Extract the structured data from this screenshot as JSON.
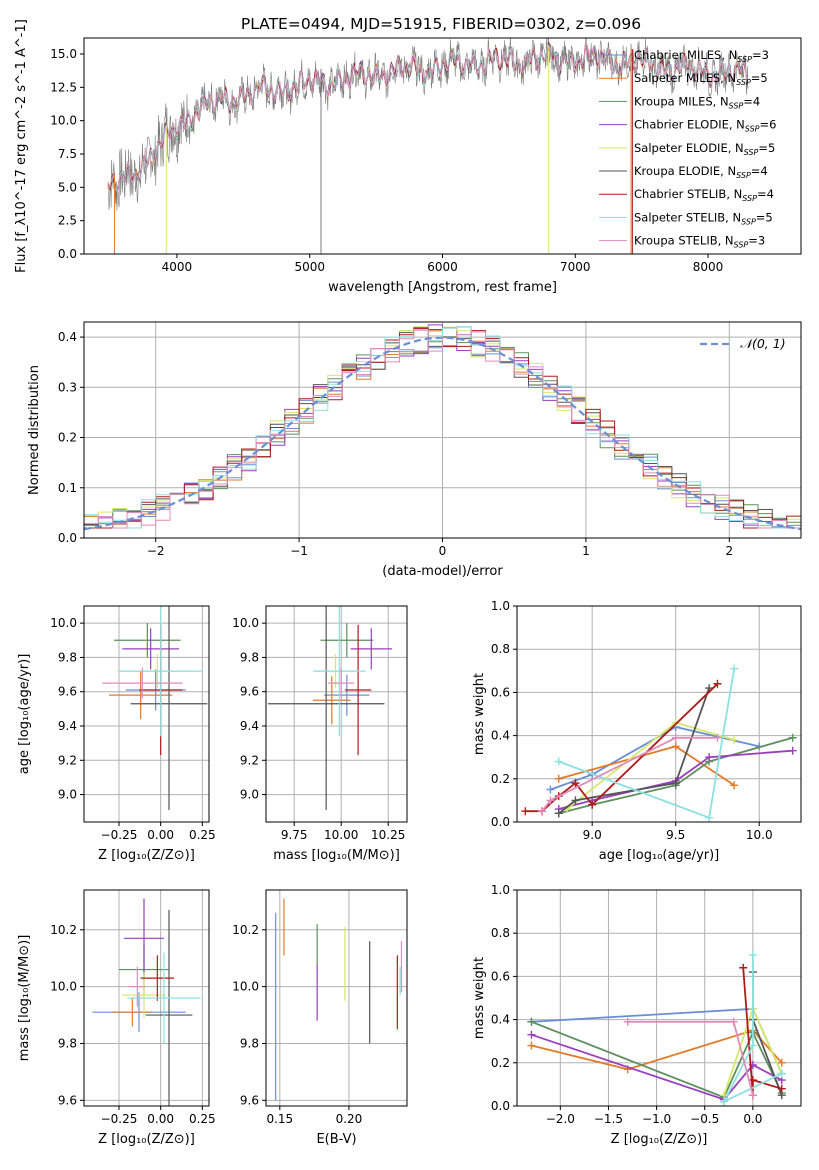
{
  "figure_title": "PLATE=0494, MJD=51915, FIBERID=0302, z=0.096",
  "colors": {
    "s0": "#6a8fd6",
    "s1": "#e07b2a",
    "s2": "#5e8f5e",
    "s3": "#9a3fbf",
    "s4": "#d6e86a",
    "s5": "#555555",
    "s6": "#b01a1a",
    "s7": "#8de0e0",
    "s8": "#e08cbc",
    "spec": "#7a7a7a",
    "grid": "#b0b0b0"
  },
  "chart_data": [
    {
      "id": "spectrum",
      "type": "line",
      "title": "PLATE=0494, MJD=51915, FIBERID=0302, z=0.096",
      "xlabel": "wavelength [Angstrom, rest frame]",
      "ylabel": "Flux [f_λ10^-17 erg cm^-2 s^-1 A^-1]",
      "xlim": [
        3300,
        8700
      ],
      "ylim": [
        0,
        16.2
      ],
      "xticks": [
        "4000",
        "5000",
        "6000",
        "7000",
        "8000"
      ],
      "yticks": [
        "0.0",
        "2.5",
        "5.0",
        "7.5",
        "10.0",
        "12.5",
        "15.0"
      ],
      "grid": false,
      "legend_position": "upper right",
      "series": [
        {
          "name": "Chabrier MILES, N_SSP=3",
          "legend_text": "Chabrier MILES, N",
          "legend_sub": "SSP",
          "legend_tail": "=3"
        },
        {
          "name": "Salpeter MILES, N_SSP=5",
          "legend_text": "Salpeter MILES, N",
          "legend_sub": "SSP",
          "legend_tail": "=5"
        },
        {
          "name": "Kroupa MILES, N_SSP=4",
          "legend_text": "Kroupa MILES, N",
          "legend_sub": "SSP",
          "legend_tail": "=4"
        },
        {
          "name": "Chabrier ELODIE, N_SSP=6",
          "legend_text": "Chabrier ELODIE, N",
          "legend_sub": "SSP",
          "legend_tail": "=6"
        },
        {
          "name": "Salpeter ELODIE, N_SSP=5",
          "legend_text": "Salpeter ELODIE, N",
          "legend_sub": "SSP",
          "legend_tail": "=5"
        },
        {
          "name": "Kroupa ELODIE, N_SSP=4",
          "legend_text": "Kroupa ELODIE, N",
          "legend_sub": "SSP",
          "legend_tail": "=4"
        },
        {
          "name": "Chabrier STELIB, N_SSP=4",
          "legend_text": "Chabrier STELIB, N",
          "legend_sub": "SSP",
          "legend_tail": "=4"
        },
        {
          "name": "Salpeter STELIB, N_SSP=5",
          "legend_text": "Salpeter STELIB, N",
          "legend_sub": "SSP",
          "legend_tail": "=5"
        },
        {
          "name": "Kroupa STELIB, N_SSP=3",
          "legend_text": "Kroupa STELIB, N",
          "legend_sub": "SSP",
          "legend_tail": "=3"
        }
      ],
      "continuum": {
        "x": [
          3480,
          3530,
          3600,
          3700,
          3800,
          3900,
          4000,
          4150,
          4300,
          4500,
          4700,
          4900,
          5100,
          5300,
          5500,
          5700,
          5900,
          6100,
          6300,
          6500,
          6700,
          6900,
          7100,
          7300,
          7500,
          7700,
          7900,
          8100,
          8300
        ],
        "y": [
          4.9,
          5.1,
          5.6,
          6.3,
          7.3,
          8.4,
          9.6,
          10.7,
          11.4,
          11.9,
          12.3,
          12.6,
          12.9,
          13.2,
          13.5,
          13.8,
          14.0,
          14.2,
          14.4,
          14.5,
          14.6,
          14.6,
          14.6,
          14.5,
          14.3,
          14.0,
          13.8,
          13.6,
          13.5
        ]
      }
    },
    {
      "id": "residuals",
      "type": "line",
      "xlabel": "(data-model)/error",
      "ylabel": "Normed distribution",
      "xlim": [
        -2.5,
        2.5
      ],
      "ylim": [
        0,
        0.43
      ],
      "xticks": [
        "−2",
        "−1",
        "0",
        "1",
        "2"
      ],
      "yticks": [
        "0.0",
        "0.1",
        "0.2",
        "0.3",
        "0.4"
      ],
      "grid": true,
      "legend_position": "upper right",
      "legend_label": "𝒩(0, 1)",
      "reference_curve": {
        "name": "N(0,1)",
        "mean": 0,
        "sigma": 1
      }
    },
    {
      "id": "age-vs-Z",
      "type": "scatter",
      "xlabel": "Z [log₁₀(Z/Z⊙)]",
      "ylabel": "age  [log₁₀(age/yr)]",
      "xlim": [
        -0.46,
        0.29
      ],
      "ylim": [
        8.84,
        10.1
      ],
      "xticks": [
        "−0.25",
        "0.00",
        "0.25"
      ],
      "yticks": [
        "9.0",
        "9.2",
        "9.4",
        "9.6",
        "9.8",
        "10.0"
      ],
      "grid": true,
      "points": [
        {
          "x": -0.03,
          "y": 9.61,
          "xerr": 0.18,
          "yerr": 0.12
        },
        {
          "x": -0.12,
          "y": 9.58,
          "xerr": 0.19,
          "yerr": 0.14
        },
        {
          "x": -0.08,
          "y": 9.9,
          "xerr": 0.2,
          "yerr": 0.1
        },
        {
          "x": -0.06,
          "y": 9.85,
          "xerr": 0.17,
          "yerr": 0.12
        },
        {
          "x": -0.02,
          "y": 9.72,
          "xerr": 0.24,
          "yerr": 0.1
        },
        {
          "x": 0.05,
          "y": 9.53,
          "xerr": 0.23,
          "yerr": 0.62
        },
        {
          "x": 0.0,
          "y": 9.61,
          "xerr": 0.13,
          "yerr": 0.38
        },
        {
          "x": 0.0,
          "y": 9.72,
          "xerr": 0.25,
          "yerr": 0.38
        },
        {
          "x": -0.11,
          "y": 9.65,
          "xerr": 0.24,
          "yerr": 0.09
        }
      ]
    },
    {
      "id": "age-vs-mass",
      "type": "scatter",
      "xlabel": "mass [log₁₀(M/M⊙)]",
      "ylabel": "",
      "xlim": [
        9.6,
        10.35
      ],
      "ylim": [
        8.84,
        10.1
      ],
      "xticks": [
        "9.75",
        "10.00",
        "10.25"
      ],
      "yticks": [
        "9.0",
        "9.2",
        "9.4",
        "9.6",
        "9.8",
        "10.0"
      ],
      "grid": true,
      "points": [
        {
          "x": 10.03,
          "y": 9.58,
          "xerr": 0.12,
          "yerr": 0.12
        },
        {
          "x": 9.95,
          "y": 9.55,
          "xerr": 0.1,
          "yerr": 0.14
        },
        {
          "x": 10.03,
          "y": 9.9,
          "xerr": 0.14,
          "yerr": 0.1
        },
        {
          "x": 10.16,
          "y": 9.85,
          "xerr": 0.11,
          "yerr": 0.12
        },
        {
          "x": 9.97,
          "y": 9.72,
          "xerr": 0.1,
          "yerr": 0.1
        },
        {
          "x": 9.92,
          "y": 9.53,
          "xerr": 0.31,
          "yerr": 0.62
        },
        {
          "x": 10.09,
          "y": 9.61,
          "xerr": 0.07,
          "yerr": 0.38
        },
        {
          "x": 9.99,
          "y": 9.72,
          "xerr": 0.14,
          "yerr": 0.38
        },
        {
          "x": 10.0,
          "y": 9.65,
          "xerr": 0.07,
          "yerr": 0.09
        }
      ]
    },
    {
      "id": "massweight-vs-age",
      "type": "line",
      "xlabel": "age  [log₁₀(age/yr)]",
      "ylabel": "mass weight",
      "xlim": [
        8.55,
        10.25
      ],
      "ylim": [
        0.0,
        1.0
      ],
      "xticks": [
        "9.0",
        "9.5",
        "10.0"
      ],
      "yticks": [
        "0.0",
        "0.2",
        "0.4",
        "0.6",
        "0.8",
        "1.0"
      ],
      "grid": true,
      "series": [
        {
          "x": [
            8.75,
            9.0,
            9.5,
            10.0
          ],
          "y": [
            0.15,
            0.22,
            0.44,
            0.35
          ]
        },
        {
          "x": [
            8.8,
            9.5,
            9.85
          ],
          "y": [
            0.2,
            0.35,
            0.17
          ]
        },
        {
          "x": [
            8.8,
            9.0,
            9.5,
            9.7,
            10.2
          ],
          "y": [
            0.04,
            0.08,
            0.17,
            0.28,
            0.39
          ]
        },
        {
          "x": [
            8.8,
            9.0,
            9.5,
            9.7,
            10.2
          ],
          "y": [
            0.06,
            0.1,
            0.19,
            0.3,
            0.33
          ]
        },
        {
          "x": [
            8.85,
            9.5,
            9.85
          ],
          "y": [
            0.06,
            0.46,
            0.38
          ]
        },
        {
          "x": [
            8.8,
            8.9,
            9.5,
            9.7
          ],
          "y": [
            0.04,
            0.1,
            0.18,
            0.62
          ]
        },
        {
          "x": [
            8.6,
            8.7,
            8.8,
            8.9,
            9.0,
            9.75
          ],
          "y": [
            0.05,
            0.05,
            0.12,
            0.18,
            0.08,
            0.64
          ]
        },
        {
          "x": [
            8.8,
            9.7,
            9.85
          ],
          "y": [
            0.28,
            0.02,
            0.71
          ]
        },
        {
          "x": [
            8.7,
            8.75,
            9.5,
            9.75
          ],
          "y": [
            0.05,
            0.1,
            0.39,
            0.39
          ]
        }
      ]
    },
    {
      "id": "mass-vs-Z",
      "type": "scatter",
      "xlabel": "Z [log₁₀(Z/Z⊙)]",
      "ylabel": "mass [log₁₀(M/M⊙)]",
      "xlim": [
        -0.46,
        0.29
      ],
      "ylim": [
        9.58,
        10.34
      ],
      "xticks": [
        "−0.25",
        "0.00",
        "0.25"
      ],
      "yticks": [
        "9.6",
        "9.8",
        "10.0",
        "10.2"
      ],
      "grid": true,
      "points": [
        {
          "x": -0.13,
          "y": 9.91,
          "xerr": 0.28,
          "yerr": 0.07
        },
        {
          "x": -0.17,
          "y": 9.91,
          "xerr": 0.12,
          "yerr": 0.05
        },
        {
          "x": -0.1,
          "y": 10.06,
          "xerr": 0.15,
          "yerr": 0.09
        },
        {
          "x": -0.1,
          "y": 10.17,
          "xerr": 0.12,
          "yerr": 0.14
        },
        {
          "x": -0.1,
          "y": 9.97,
          "xerr": 0.13,
          "yerr": 0.08
        },
        {
          "x": 0.05,
          "y": 9.9,
          "xerr": 0.14,
          "yerr": 0.37
        },
        {
          "x": -0.02,
          "y": 10.03,
          "xerr": 0.1,
          "yerr": 0.08
        },
        {
          "x": 0.02,
          "y": 9.96,
          "xerr": 0.22,
          "yerr": 0.16
        },
        {
          "x": -0.14,
          "y": 10.0,
          "xerr": 0.05,
          "yerr": 0.07
        }
      ]
    },
    {
      "id": "mass-vs-EBV",
      "type": "scatter",
      "xlabel": "E(B-V)",
      "ylabel": "",
      "xlim": [
        0.14,
        0.242
      ],
      "ylim": [
        9.58,
        10.34
      ],
      "xticks": [
        "0.15",
        "0.20"
      ],
      "yticks": [
        "9.6",
        "9.8",
        "10.0",
        "10.2"
      ],
      "grid": true,
      "points": [
        {
          "x": 0.147,
          "y": 9.93,
          "xerr": 0,
          "yerr": 0.33
        },
        {
          "x": 0.153,
          "y": 10.21,
          "xerr": 0,
          "yerr": 0.1
        },
        {
          "x": 0.177,
          "y": 10.15,
          "xerr": 0,
          "yerr": 0.07
        },
        {
          "x": 0.177,
          "y": 9.98,
          "xerr": 0,
          "yerr": 0.1
        },
        {
          "x": 0.197,
          "y": 10.08,
          "xerr": 0,
          "yerr": 0.13
        },
        {
          "x": 0.215,
          "y": 9.98,
          "xerr": 0,
          "yerr": 0.18
        },
        {
          "x": 0.235,
          "y": 9.98,
          "xerr": 0,
          "yerr": 0.13
        },
        {
          "x": 0.237,
          "y": 10.02,
          "xerr": 0,
          "yerr": 0.05
        },
        {
          "x": 0.238,
          "y": 10.07,
          "xerr": 0,
          "yerr": 0.09
        }
      ]
    },
    {
      "id": "massweight-vs-Z",
      "type": "line",
      "xlabel": "Z [log₁₀(Z/Z⊙)]",
      "ylabel": "mass weight",
      "xlim": [
        -2.45,
        0.5
      ],
      "ylim": [
        0.0,
        1.0
      ],
      "xticks": [
        "−2.0",
        "−1.5",
        "−1.0",
        "−0.5",
        "0.0"
      ],
      "yticks": [
        "0.0",
        "0.2",
        "0.4",
        "0.6",
        "0.8",
        "1.0"
      ],
      "grid": true,
      "series": [
        {
          "x": [
            -2.3,
            0.0,
            0.3
          ],
          "y": [
            0.39,
            0.45,
            0.15
          ]
        },
        {
          "x": [
            -2.3,
            -1.3,
            0.0,
            0.3
          ],
          "y": [
            0.28,
            0.17,
            0.35,
            0.2
          ]
        },
        {
          "x": [
            -2.3,
            -0.3,
            0.0,
            0.3
          ],
          "y": [
            0.39,
            0.04,
            0.34,
            0.06
          ]
        },
        {
          "x": [
            -2.3,
            -0.3,
            0.0,
            0.3
          ],
          "y": [
            0.33,
            0.03,
            0.19,
            0.12
          ]
        },
        {
          "x": [
            -0.3,
            0.0,
            0.3
          ],
          "y": [
            0.05,
            0.45,
            0.15
          ]
        },
        {
          "x": [
            0.0,
            0.0,
            0.3
          ],
          "y": [
            0.62,
            0.4,
            0.05
          ]
        },
        {
          "x": [
            -0.1,
            0.0,
            0.0,
            0.3
          ],
          "y": [
            0.64,
            0.05,
            0.12,
            0.08
          ]
        },
        {
          "x": [
            0.0,
            0.0,
            -0.3,
            0.3
          ],
          "y": [
            0.7,
            0.28,
            0.02,
            0.15
          ]
        },
        {
          "x": [
            -1.3,
            -0.2,
            0.0
          ],
          "y": [
            0.39,
            0.39,
            0.05
          ]
        }
      ]
    }
  ]
}
